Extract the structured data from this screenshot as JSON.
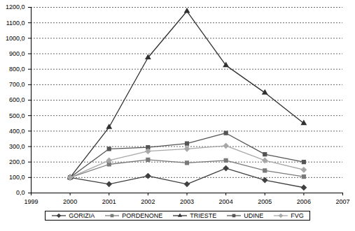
{
  "chart_data": {
    "type": "line",
    "x": [
      2000,
      2001,
      2002,
      2003,
      2004,
      2005,
      2006
    ],
    "xlim": [
      1999,
      2007
    ],
    "xticks": [
      1999,
      2000,
      2001,
      2002,
      2003,
      2004,
      2005,
      2006,
      2007
    ],
    "ylim": [
      0,
      1200
    ],
    "yticks": [
      {
        "value": 0,
        "label": "0,0"
      },
      {
        "value": 100,
        "label": "100,0"
      },
      {
        "value": 200,
        "label": "200,0"
      },
      {
        "value": 300,
        "label": "300,0"
      },
      {
        "value": 400,
        "label": "400,0"
      },
      {
        "value": 500,
        "label": "500,0"
      },
      {
        "value": 600,
        "label": "600,0"
      },
      {
        "value": 700,
        "label": "700,0"
      },
      {
        "value": 800,
        "label": "800,0"
      },
      {
        "value": 900,
        "label": "900,0"
      },
      {
        "value": 1000,
        "label": "1000,0"
      },
      {
        "value": 1100,
        "label": "1100,0"
      },
      {
        "value": 1200,
        "label": "1200,0"
      }
    ],
    "grid": true,
    "legend": "bottom",
    "series": [
      {
        "name": "GORIZIA",
        "color": "#404040",
        "marker": "diamond",
        "values": [
          100,
          57,
          110,
          57,
          160,
          83,
          35
        ]
      },
      {
        "name": "PORDENONE",
        "color": "#7a7a7a",
        "marker": "square",
        "values": [
          100,
          185,
          215,
          195,
          210,
          145,
          105
        ]
      },
      {
        "name": "TRIESTE",
        "color": "#303030",
        "marker": "triangle",
        "values": [
          100,
          425,
          875,
          1175,
          825,
          648,
          450
        ]
      },
      {
        "name": "UDINE",
        "color": "#555555",
        "marker": "square",
        "values": [
          100,
          285,
          295,
          320,
          387,
          250,
          200
        ]
      },
      {
        "name": "FVG",
        "color": "#a8a8a8",
        "marker": "diamond",
        "values": [
          100,
          210,
          270,
          285,
          305,
          210,
          150
        ]
      }
    ]
  }
}
